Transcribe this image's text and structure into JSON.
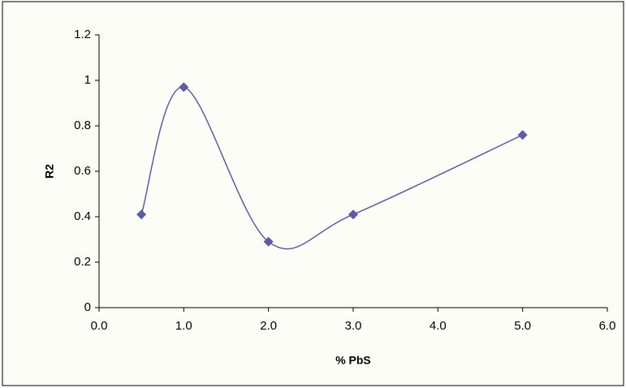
{
  "chart_data": {
    "type": "line",
    "smooth": true,
    "marker": "diamond",
    "xlabel": "% PbS",
    "ylabel": "R2",
    "x": [
      0.5,
      1.0,
      2.0,
      3.0,
      5.0
    ],
    "values": [
      0.41,
      0.97,
      0.29,
      0.41,
      0.76
    ],
    "color": "#5b5ba8",
    "xlim": [
      0,
      6
    ],
    "xticks": [
      {
        "value": 0,
        "label": "0.0"
      },
      {
        "value": 1,
        "label": "1.0"
      },
      {
        "value": 2,
        "label": "2.0"
      },
      {
        "value": 3,
        "label": "3.0"
      },
      {
        "value": 4,
        "label": "4.0"
      },
      {
        "value": 5,
        "label": "5.0"
      },
      {
        "value": 6,
        "label": "6.0"
      }
    ],
    "ylim": [
      0,
      1.2
    ],
    "yticks": [
      0,
      0.2,
      0.4,
      0.6,
      0.8,
      1,
      1.2
    ],
    "grid": false
  }
}
